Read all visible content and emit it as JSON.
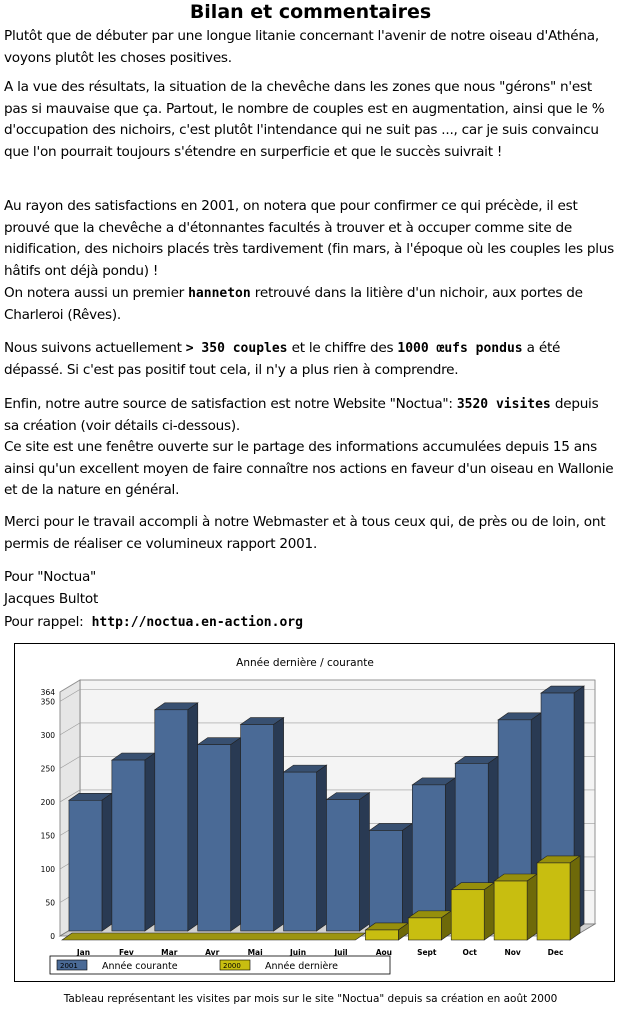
{
  "title": "Bilan et commentaires",
  "p1": "Plutôt que de débuter par une longue litanie concernant l'avenir de notre oiseau d'Athéna, voyons plutôt les choses positives.",
  "p2": "A la vue des résultats, la situation de la chevêche dans les zones que nous \"gérons\" n'est pas si mauvaise que ça. Partout, le nombre de couples est en augmentation, ainsi que le % d'occupation des nichoirs, c'est plutôt l'intendance qui ne suit pas ..., car je suis convaincu que l'on pourrait toujours s'étendre en surperficie et que le succès suivrait !",
  "p3": "Au rayon des satisfactions en 2001, on notera que pour confirmer ce qui précède, il est prouvé que la chevêche a d'étonnantes facultés à trouver et à occuper comme site de nidification, des nichoirs placés très tardivement (fin mars, à l'époque où les couples les plus hâtifs ont déjà pondu) !",
  "p4": {
    "before": "On notera aussi un premier ",
    "bold": "hanneton",
    "after": " retrouvé dans la litière d'un nichoir, aux portes de Charleroi (Rêves)."
  },
  "p5": {
    "t1": "Nous suivons actuellement ",
    "b1": "> 350 couples",
    "t2": " et le chiffre des ",
    "b2": "1000 œufs pondus",
    "t3": " a été dépassé. Si c'est pas positif tout cela, il n'y a plus rien à comprendre."
  },
  "p6": {
    "t1": "Enfin, notre autre source de satisfaction est notre Website \"Noctua\": ",
    "b1": "3520 visites",
    "t2": " depuis sa création (voir détails ci-dessous)."
  },
  "p7": "Ce site est une fenêtre ouverte sur le partage des informations accumulées depuis 15 ans ainsi qu'un excellent moyen de faire connaître nos actions en faveur d'un oiseau en Wallonie et de la nature en général.",
  "p8": "Merci pour le travail accompli à notre Webmaster et à tous ceux qui, de près ou de loin, ont permis de réaliser ce volumineux rapport 2001.",
  "sig1": "Pour \"Noctua\"",
  "sig2": "Jacques Bultot",
  "sig3": "Pour rappel:",
  "url": "http://noctua.en-action.org",
  "caption": "Tableau représentant les visites par mois sur le site \"Noctua\" depuis sa création en août 2000",
  "chart_data": {
    "type": "bar",
    "title": "Année dernière / courante",
    "categories": [
      "Jan",
      "Fev",
      "Mar",
      "Avr",
      "Mai",
      "Juin",
      "Juil",
      "Aou",
      "Sept",
      "Oct",
      "Nov",
      "Dec"
    ],
    "series": [
      {
        "name": "Année courante",
        "legend_code": "2001",
        "color": "#4a6a96",
        "values": [
          195,
          255,
          330,
          278,
          308,
          237,
          196,
          150,
          218,
          250,
          315,
          355
        ]
      },
      {
        "name": "Année dernière",
        "legend_code": "2000",
        "color": "#c8be10",
        "values": [
          0,
          0,
          0,
          0,
          0,
          0,
          0,
          15,
          33,
          75,
          88,
          115
        ]
      }
    ],
    "yticks": [
      0,
      50,
      100,
      150,
      200,
      250,
      300,
      350,
      364
    ],
    "ylim": [
      0,
      364
    ],
    "grid": true,
    "legend_position": "bottom"
  }
}
